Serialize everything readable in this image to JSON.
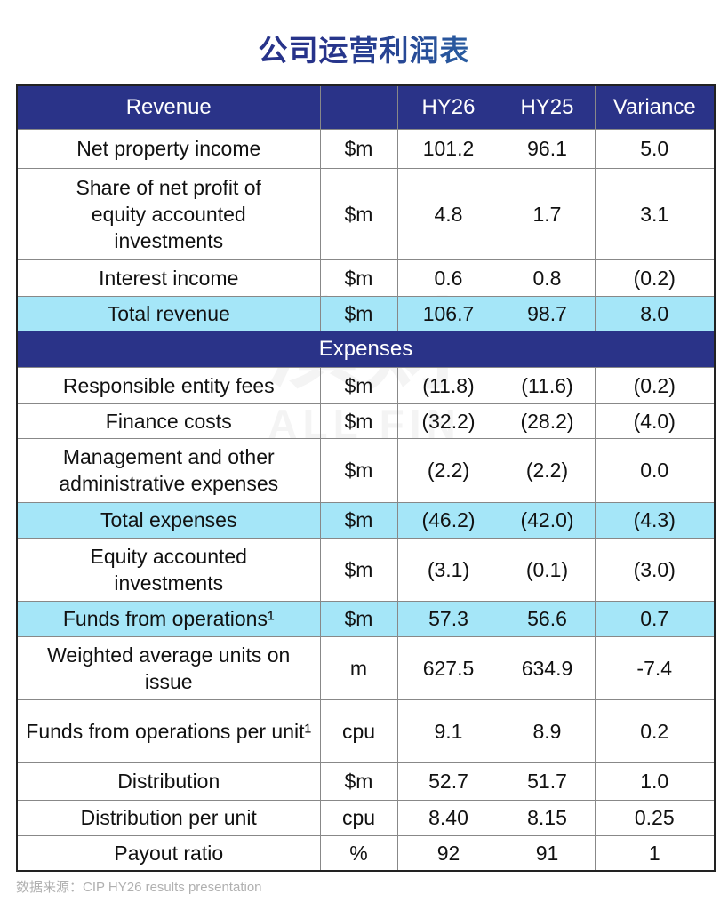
{
  "title": "公司运营利润表",
  "watermark": {
    "mark": "演财",
    "en": "ALL FIN"
  },
  "header": [
    "Revenue",
    "",
    "HY26",
    "HY25",
    "Variance"
  ],
  "rows": [
    {
      "type": "normal",
      "cells": [
        "Net property income",
        "$m",
        "101.2",
        "96.1",
        "5.0"
      ]
    },
    {
      "type": "normal",
      "cells": [
        "Share of net profit of equity accounted investments",
        "$m",
        "4.8",
        "1.7",
        "3.1"
      ]
    },
    {
      "type": "normal",
      "cells": [
        "Interest income",
        "$m",
        "0.6",
        "0.8",
        "(0.2)"
      ]
    },
    {
      "type": "total",
      "cells": [
        "Total revenue",
        "$m",
        "106.7",
        "98.7",
        "8.0"
      ]
    },
    {
      "type": "section",
      "cells": [
        "Expenses"
      ]
    },
    {
      "type": "normal",
      "cells": [
        "Responsible entity fees",
        "$m",
        "(11.8)",
        "(11.6)",
        "(0.2)"
      ]
    },
    {
      "type": "normal",
      "cells": [
        "Finance costs",
        "$m",
        "(32.2)",
        "(28.2)",
        "(4.0)"
      ]
    },
    {
      "type": "normal",
      "cells": [
        "Management and other administrative expenses",
        "$m",
        "(2.2)",
        "(2.2)",
        "0.0"
      ]
    },
    {
      "type": "total",
      "cells": [
        "Total expenses",
        "$m",
        "(46.2)",
        "(42.0)",
        "(4.3)"
      ]
    },
    {
      "type": "normal",
      "cells": [
        "Equity accounted investments",
        "$m",
        "(3.1)",
        "(0.1)",
        "(3.0)"
      ]
    },
    {
      "type": "total",
      "cells": [
        "Funds from operations¹",
        "$m",
        "57.3",
        "56.6",
        "0.7"
      ]
    },
    {
      "type": "normal",
      "cells": [
        "Weighted average units on issue",
        "m",
        "627.5",
        "634.9",
        "-7.4"
      ]
    },
    {
      "type": "normal",
      "cells": [
        "Funds from operations per unit¹",
        "cpu",
        "9.1",
        "8.9",
        "0.2"
      ]
    },
    {
      "type": "normal",
      "cells": [
        "Distribution",
        "$m",
        "52.7",
        "51.7",
        "1.0"
      ]
    },
    {
      "type": "normal",
      "cells": [
        "Distribution per unit",
        "cpu",
        "8.40",
        "8.15",
        "0.25"
      ]
    },
    {
      "type": "normal",
      "cells": [
        "Payout ratio",
        "%",
        "92",
        "91",
        "1"
      ]
    }
  ],
  "source": "数据来源：CIP HY26 results presentation"
}
